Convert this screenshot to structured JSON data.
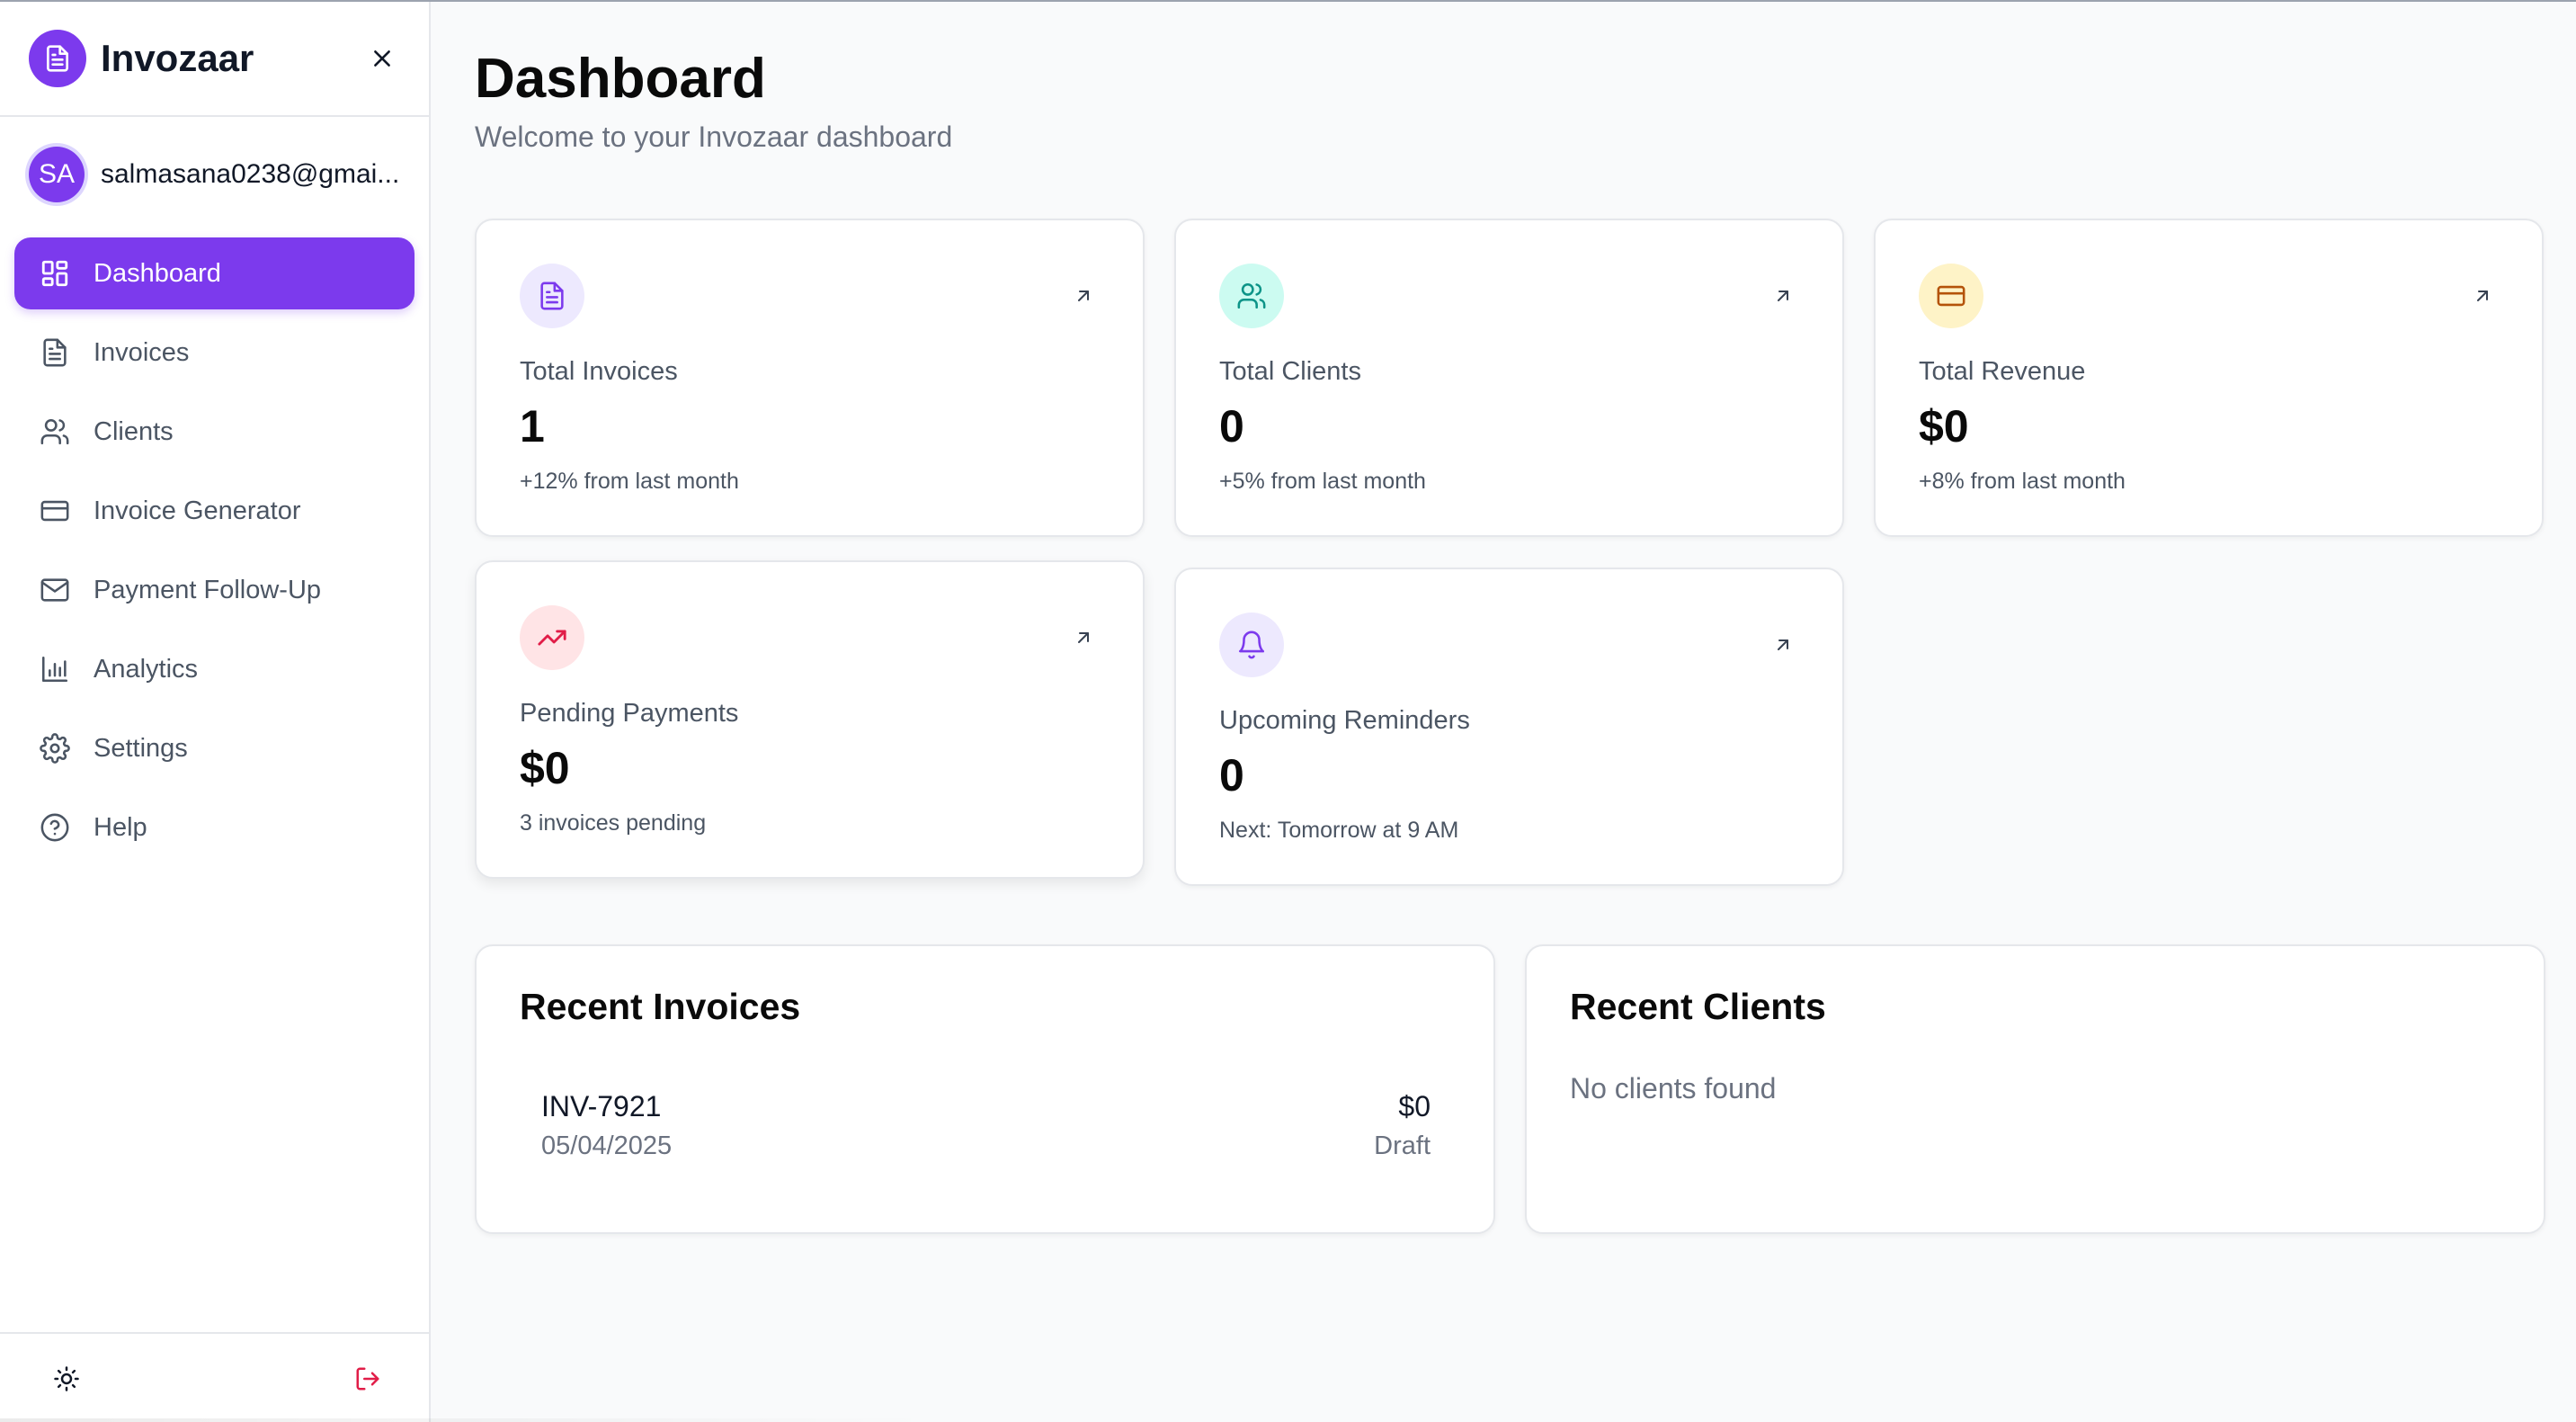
{
  "brand": {
    "name": "Invozaar"
  },
  "user": {
    "initials": "SA",
    "email": "salmasana0238@gmai..."
  },
  "nav": {
    "items": [
      {
        "label": "Dashboard",
        "icon": "dashboard-grid-icon",
        "active": true
      },
      {
        "label": "Invoices",
        "icon": "document-icon"
      },
      {
        "label": "Clients",
        "icon": "users-icon"
      },
      {
        "label": "Invoice Generator",
        "icon": "credit-card-icon"
      },
      {
        "label": "Payment Follow-Up",
        "icon": "mail-icon"
      },
      {
        "label": "Analytics",
        "icon": "bar-chart-icon"
      },
      {
        "label": "Settings",
        "icon": "gear-icon"
      },
      {
        "label": "Help",
        "icon": "help-circle-icon"
      }
    ]
  },
  "footer": {
    "theme_icon": "sun-icon",
    "logout_icon": "logout-icon"
  },
  "header": {
    "title": "Dashboard",
    "subtitle": "Welcome to your Invozaar dashboard"
  },
  "stats": [
    {
      "label": "Total Invoices",
      "value": "1",
      "sub": "+12% from last month",
      "icon": "document-icon",
      "icon_color": "#7c3aed",
      "icon_bg": "#ede9fe"
    },
    {
      "label": "Total Clients",
      "value": "0",
      "sub": "+5% from last month",
      "icon": "users-icon",
      "icon_color": "#0d9488",
      "icon_bg": "#ccfbf1"
    },
    {
      "label": "Total Revenue",
      "value": "$0",
      "sub": "+8% from last month",
      "icon": "credit-card-icon",
      "icon_color": "#b45309",
      "icon_bg": "#fef3c7"
    },
    {
      "label": "Pending Payments",
      "value": "$0",
      "sub": "3 invoices pending",
      "icon": "trending-up-icon",
      "icon_color": "#e11d48",
      "icon_bg": "#ffe4e6"
    },
    {
      "label": "Upcoming Reminders",
      "value": "0",
      "sub": "Next: Tomorrow at 9 AM",
      "icon": "bell-icon",
      "icon_color": "#7c3aed",
      "icon_bg": "#ede9fe"
    }
  ],
  "recent_invoices": {
    "title": "Recent Invoices",
    "rows": [
      {
        "id": "INV-7921",
        "date": "05/04/2025",
        "amount": "$0",
        "status": "Draft"
      }
    ]
  },
  "recent_clients": {
    "title": "Recent Clients",
    "empty": "No clients found"
  },
  "colors": {
    "accent": "#7c3aed",
    "logout": "#e11d48"
  }
}
